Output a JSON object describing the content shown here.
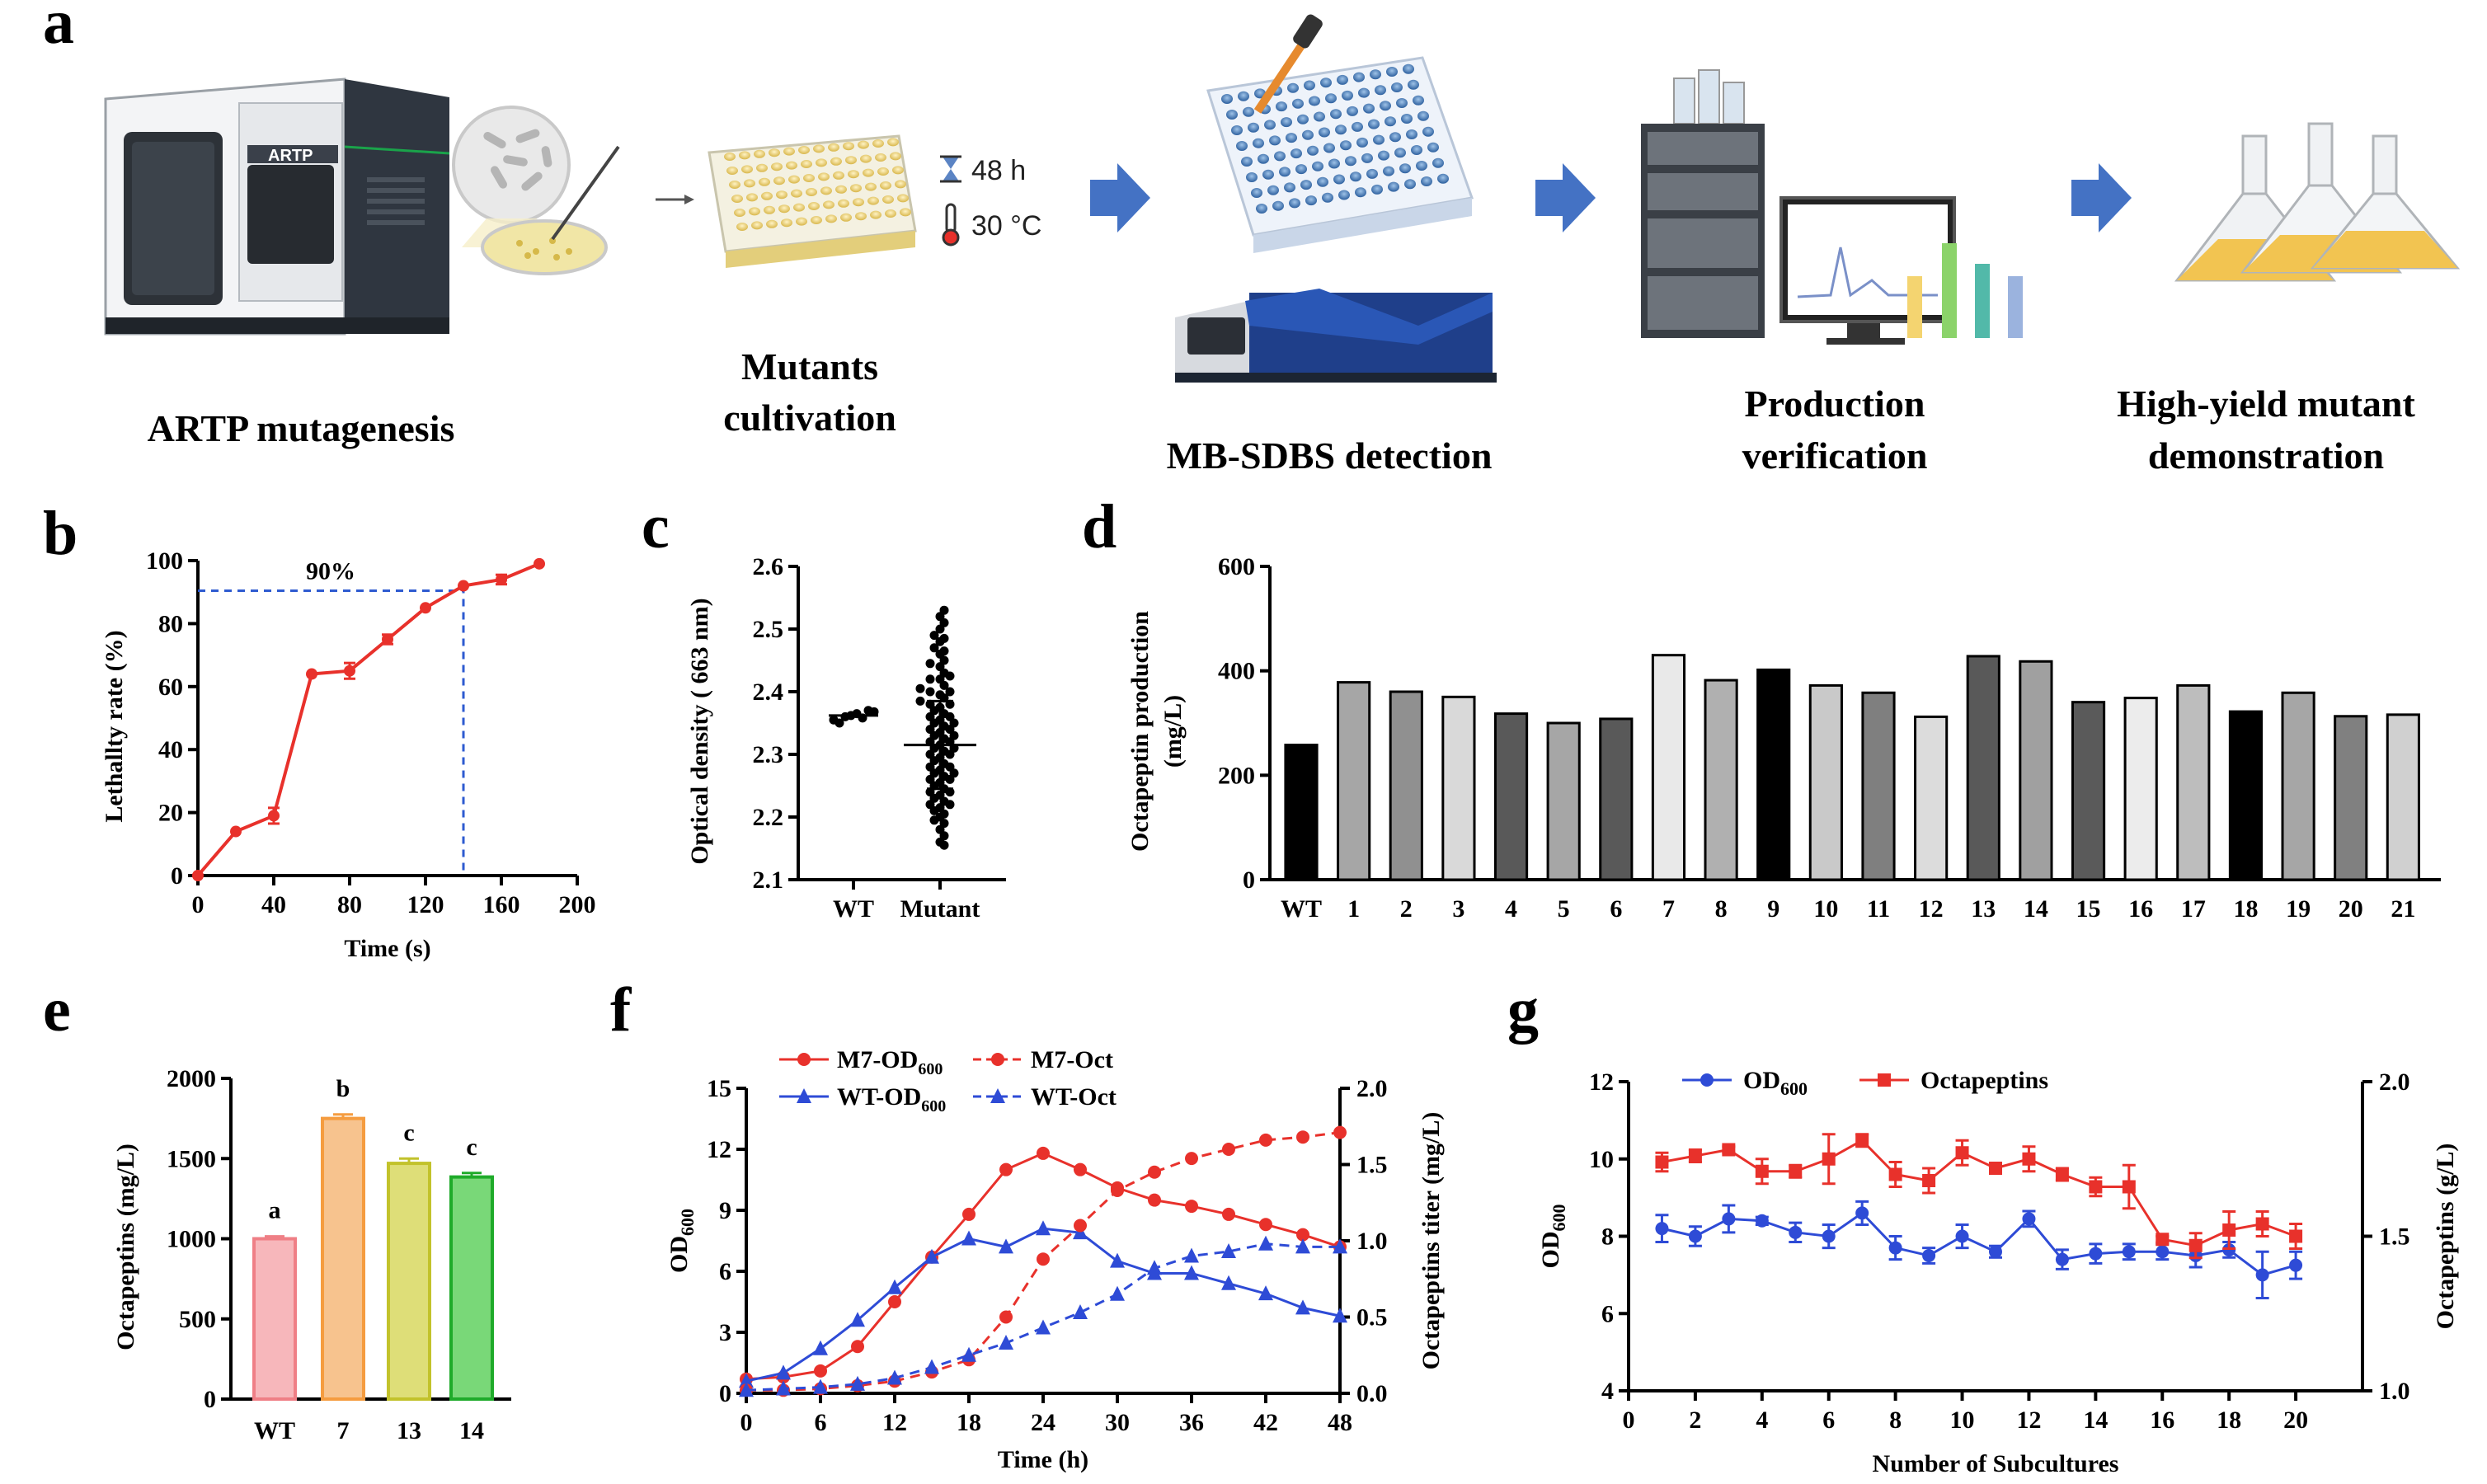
{
  "panel_labels": [
    "a",
    "b",
    "c",
    "d",
    "e",
    "f",
    "g"
  ],
  "workflow": {
    "device_label": "ARTP",
    "time_label": "48 h",
    "temp_label": "30 °C",
    "captions": {
      "artp": "ARTP mutagenesis",
      "mutants_1": "Mutants",
      "mutants_2": "cultivation",
      "mbsdbs": "MB-SDBS detection",
      "prod_1": "Production",
      "prod_2": "verification",
      "high_1": "High-yield mutant",
      "high_2": "demonstration"
    },
    "colors": {
      "arrow": "#4472c4",
      "plate": "#e9d98a",
      "well_blue": "#3a72b0",
      "device_dark": "#2f3640",
      "flask_liquid": "#f2c451"
    }
  },
  "chart_data": [
    {
      "id": "b",
      "type": "line",
      "x": [
        0,
        20,
        40,
        60,
        80,
        100,
        120,
        140,
        160,
        180
      ],
      "y": [
        0,
        14,
        19,
        64,
        65,
        75,
        85,
        92,
        94,
        99
      ],
      "err": [
        0,
        0,
        2.5,
        0,
        2.5,
        1.5,
        0,
        0,
        1.5,
        0
      ],
      "xlim": [
        0,
        200
      ],
      "ylim": [
        0,
        100
      ],
      "xticks": [
        0,
        40,
        80,
        120,
        160,
        200
      ],
      "yticks": [
        0,
        20,
        40,
        60,
        80,
        100
      ],
      "xlabel": "Time (s)",
      "ylabel": "Lethallty rate (%)",
      "annotation": {
        "text": "90%",
        "x": 140,
        "y": 92
      },
      "color": "#e8312b",
      "ref_color": "#2e5bd0"
    },
    {
      "id": "c",
      "type": "scatter",
      "categories": [
        "WT",
        "Mutant"
      ],
      "ylim": [
        2.1,
        2.6
      ],
      "yticks": [
        2.1,
        2.2,
        2.3,
        2.4,
        2.5,
        2.6
      ],
      "ylabel": "Optical density ( 663 nm)",
      "wt_points": [
        2.355,
        2.36,
        2.365,
        2.37,
        2.35,
        2.362,
        2.358,
        2.368
      ],
      "mutant_points": [
        2.53,
        2.52,
        2.51,
        2.5,
        2.49,
        2.485,
        2.48,
        2.47,
        2.465,
        2.46,
        2.45,
        2.445,
        2.44,
        2.43,
        2.425,
        2.42,
        2.41,
        2.405,
        2.4,
        2.395,
        2.39,
        2.385,
        2.38,
        2.375,
        2.37,
        2.365,
        2.36,
        2.355,
        2.35,
        2.345,
        2.34,
        2.335,
        2.33,
        2.325,
        2.32,
        2.315,
        2.31,
        2.305,
        2.3,
        2.295,
        2.29,
        2.285,
        2.28,
        2.275,
        2.27,
        2.265,
        2.26,
        2.255,
        2.25,
        2.245,
        2.24,
        2.235,
        2.23,
        2.225,
        2.22,
        2.215,
        2.21,
        2.205,
        2.2,
        2.195,
        2.19,
        2.18,
        2.17,
        2.16,
        2.155,
        2.3,
        2.32,
        2.34,
        2.36,
        2.28,
        2.26,
        2.24,
        2.22,
        2.38,
        2.4,
        2.42,
        2.35,
        2.31,
        2.27,
        2.33
      ],
      "wt_mean": 2.362,
      "mutant_mean": 2.315,
      "mutant_sd": [
        2.245,
        2.385
      ]
    },
    {
      "id": "d",
      "type": "bar",
      "categories": [
        "WT",
        "1",
        "2",
        "3",
        "4",
        "5",
        "6",
        "7",
        "8",
        "9",
        "10",
        "11",
        "12",
        "13",
        "14",
        "15",
        "16",
        "17",
        "18",
        "19",
        "20",
        "21"
      ],
      "values": [
        258,
        378,
        360,
        350,
        318,
        300,
        308,
        430,
        382,
        402,
        372,
        358,
        312,
        428,
        418,
        340,
        348,
        372,
        322,
        358,
        313,
        316
      ],
      "colors": [
        "#000000",
        "#a6a6a6",
        "#909090",
        "#d9d9d9",
        "#595959",
        "#a6a6a6",
        "#595959",
        "#e9e9e9",
        "#b0b0b0",
        "#000000",
        "#c9c9c9",
        "#7f7f7f",
        "#dcdcdc",
        "#595959",
        "#a0a0a0",
        "#5a5a5a",
        "#ececec",
        "#bdbdbd",
        "#000000",
        "#a6a6a6",
        "#808080",
        "#d0d0d0"
      ],
      "ylim": [
        0,
        600
      ],
      "yticks": [
        0,
        200,
        400,
        600
      ],
      "ylabel": "Octapeptin production (mg/L)"
    },
    {
      "id": "e",
      "type": "bar",
      "categories": [
        "WT",
        "7",
        "13",
        "14"
      ],
      "values": [
        1000,
        1750,
        1470,
        1385
      ],
      "err": [
        15,
        25,
        30,
        25
      ],
      "letters": [
        "a",
        "b",
        "c",
        "c"
      ],
      "fill": [
        "#f7b7bb",
        "#f7c38e",
        "#dede78",
        "#79d878"
      ],
      "edge": [
        "#ef7f86",
        "#f59c3f",
        "#c2c22b",
        "#1fab2a"
      ],
      "ylim": [
        0,
        2000
      ],
      "yticks": [
        0,
        500,
        1000,
        1500,
        2000
      ],
      "ylabel": "Octapeptins (mg/L)"
    },
    {
      "id": "f",
      "type": "line",
      "x": [
        0,
        3,
        6,
        9,
        12,
        15,
        18,
        21,
        24,
        27,
        30,
        33,
        36,
        39,
        42,
        45,
        48
      ],
      "series": [
        {
          "name": "M7-OD600",
          "axis": "left",
          "values": [
            0.7,
            0.8,
            1.1,
            2.3,
            4.5,
            6.7,
            8.8,
            11.0,
            11.8,
            11.0,
            10.1,
            9.5,
            9.2,
            8.8,
            8.3,
            7.8,
            7.2
          ],
          "color": "#e8312b",
          "marker": "circle",
          "dash": false
        },
        {
          "name": "WT-OD600",
          "axis": "left",
          "values": [
            0.6,
            1.0,
            2.2,
            3.6,
            5.2,
            6.7,
            7.6,
            7.2,
            8.1,
            7.9,
            6.5,
            5.9,
            5.9,
            5.4,
            4.9,
            4.2,
            3.8
          ],
          "color": "#2e4bd6",
          "marker": "triangle",
          "dash": false
        },
        {
          "name": "M7-Oct",
          "axis": "right",
          "values": [
            0.02,
            0.02,
            0.03,
            0.05,
            0.08,
            0.14,
            0.22,
            0.5,
            0.88,
            1.1,
            1.33,
            1.45,
            1.54,
            1.6,
            1.66,
            1.68,
            1.71
          ],
          "color": "#e8312b",
          "marker": "circle",
          "dash": true
        },
        {
          "name": "WT-Oct",
          "axis": "right",
          "values": [
            0.02,
            0.03,
            0.04,
            0.06,
            0.1,
            0.17,
            0.25,
            0.33,
            0.43,
            0.53,
            0.65,
            0.82,
            0.9,
            0.93,
            0.98,
            0.96,
            0.96
          ],
          "color": "#2e4bd6",
          "marker": "triangle",
          "dash": true
        }
      ],
      "legend": [
        {
          "main": "M7-OD",
          "sub": "600"
        },
        {
          "main": "M7-Oct",
          "sub": ""
        },
        {
          "main": "WT-OD",
          "sub": "600"
        },
        {
          "main": "WT-Oct",
          "sub": ""
        }
      ],
      "xlim": [
        0,
        48
      ],
      "xticks": [
        0,
        6,
        12,
        18,
        24,
        30,
        36,
        42,
        48
      ],
      "ylim_left": [
        0,
        15
      ],
      "yticks_left": [
        0,
        3,
        6,
        9,
        12,
        15
      ],
      "ylim_right": [
        0,
        2.0
      ],
      "yticks_right": [
        "0.0",
        "0.5",
        "1.0",
        "1.5",
        "2.0"
      ],
      "xlabel": "Time (h)",
      "ylabel_left_main": "OD",
      "ylabel_left_sub": "600",
      "ylabel_right": "Octapeptins titer (mg/L)"
    },
    {
      "id": "g",
      "type": "line",
      "x": [
        1,
        2,
        3,
        4,
        5,
        6,
        7,
        8,
        9,
        10,
        11,
        12,
        13,
        14,
        15,
        16,
        17,
        18,
        19,
        20
      ],
      "series": [
        {
          "name": "OD600",
          "axis": "left",
          "values": [
            8.2,
            8.0,
            8.45,
            8.4,
            8.1,
            8.0,
            8.6,
            7.7,
            7.5,
            8.0,
            7.6,
            8.45,
            7.4,
            7.55,
            7.6,
            7.6,
            7.5,
            7.65,
            7.0,
            7.25
          ],
          "err": [
            0.35,
            0.25,
            0.35,
            0.1,
            0.25,
            0.3,
            0.3,
            0.3,
            0.2,
            0.3,
            0.15,
            0.2,
            0.25,
            0.25,
            0.2,
            0.2,
            0.3,
            0.2,
            0.6,
            0.35
          ],
          "color": "#2e4bd6",
          "marker": "circle"
        },
        {
          "name": "Octapeptins",
          "axis": "right",
          "values": [
            1.74,
            1.76,
            1.78,
            1.71,
            1.71,
            1.75,
            1.81,
            1.7,
            1.68,
            1.77,
            1.72,
            1.75,
            1.7,
            1.66,
            1.66,
            1.49,
            1.47,
            1.52,
            1.54,
            1.5
          ],
          "err": [
            0.03,
            0.02,
            0.01,
            0.04,
            0.02,
            0.08,
            0.02,
            0.04,
            0.04,
            0.04,
            0.01,
            0.04,
            0.02,
            0.03,
            0.07,
            0.01,
            0.04,
            0.06,
            0.04,
            0.04
          ],
          "color": "#e8312b",
          "marker": "square"
        }
      ],
      "legend": [
        {
          "main": "OD",
          "sub": "600"
        },
        {
          "main": "Octapeptins",
          "sub": ""
        }
      ],
      "xlim": [
        0,
        22
      ],
      "xticks": [
        0,
        2,
        4,
        6,
        8,
        10,
        12,
        14,
        16,
        18,
        20
      ],
      "ylim_left": [
        4,
        12
      ],
      "yticks_left": [
        4,
        6,
        8,
        10,
        12
      ],
      "ylim_right": [
        1.0,
        2.0
      ],
      "yticks_right": [
        "1.0",
        "1.5",
        "2.0"
      ],
      "xlabel": "Number of Subcultures",
      "ylabel_left_main": "OD",
      "ylabel_left_sub": "600",
      "ylabel_right": "Octapeptins (g/L)"
    }
  ]
}
